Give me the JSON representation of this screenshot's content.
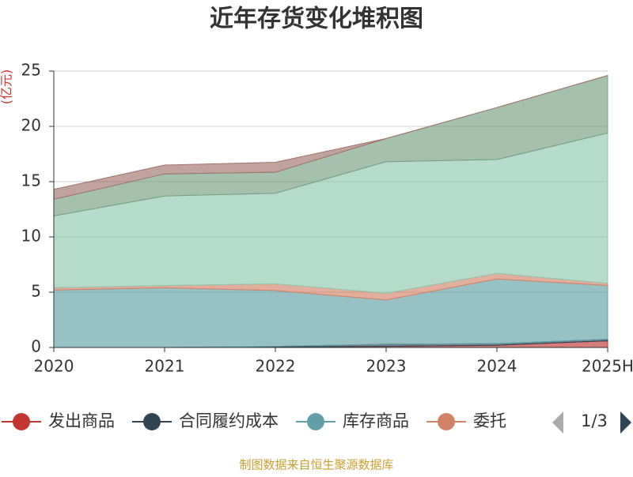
{
  "chart_data": {
    "type": "stacked-area",
    "title": "近年存货变化堆积图",
    "y_label": "(亿元)",
    "categories": [
      "2020",
      "2021",
      "2022",
      "2023",
      "2024",
      "2025H"
    ],
    "series": [
      {
        "name": "发出商品",
        "color": "#c23531",
        "values": [
          0,
          0,
          0.05,
          0.1,
          0.2,
          0.6
        ]
      },
      {
        "name": "合同履约成本",
        "color": "#2f4554",
        "values": [
          0,
          0,
          0.05,
          0.2,
          0.15,
          0.15
        ]
      },
      {
        "name": "库存商品",
        "color": "#61a0a8",
        "values": [
          5.2,
          5.4,
          5.05,
          4.0,
          5.85,
          4.85
        ]
      },
      {
        "name": "委托",
        "color": "#d48265",
        "values": [
          0.2,
          0.2,
          0.6,
          0.6,
          0.5,
          0.2
        ]
      },
      {
        "color": "#91c7ae",
        "values": [
          6.5,
          8.1,
          8.2,
          11.9,
          10.3,
          13.6
        ]
      },
      {
        "color": "#749f83",
        "values": [
          1.5,
          2.0,
          1.9,
          2.1,
          4.7,
          5.2
        ]
      },
      {
        "color": "#a0726a",
        "values": [
          0.9,
          0.8,
          0.9,
          0,
          0,
          0
        ]
      }
    ],
    "ylim": [
      0,
      25
    ],
    "yticks": [
      0,
      5,
      10,
      15,
      20,
      25
    ],
    "grid": true,
    "legend_page": "1/3",
    "source": "制图数据来自恒生聚源数据库"
  }
}
